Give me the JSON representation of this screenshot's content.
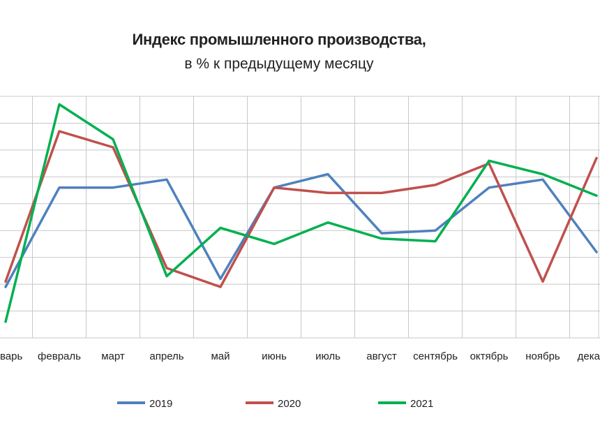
{
  "chart_data": {
    "type": "line",
    "title": "Индекс промышленного производства,",
    "subtitle": "в % к предыдущему месяцу",
    "categories": [
      "январь",
      "февраль",
      "март",
      "апрель",
      "май",
      "июнь",
      "июль",
      "август",
      "сентябрь",
      "октябрь",
      "ноябрь",
      "декабрь"
    ],
    "category_labels_visible": [
      "варь",
      "февраль",
      "март",
      "апрель",
      "май",
      "июнь",
      "июль",
      "август",
      "сентябрь",
      "октябрь",
      "ноябрь",
      "дека"
    ],
    "series": [
      {
        "name": "2019",
        "color": "#4f81bd",
        "values": [
          1.9,
          5.6,
          5.6,
          5.9,
          2.2,
          5.6,
          6.1,
          3.9,
          4.0,
          5.6,
          5.9,
          3.2
        ]
      },
      {
        "name": "2020",
        "color": "#c0504d",
        "values": [
          2.1,
          7.7,
          7.1,
          2.6,
          1.9,
          5.6,
          5.4,
          5.4,
          5.7,
          6.5,
          2.1,
          6.7
        ]
      },
      {
        "name": "2021",
        "color": "#00b050",
        "values": [
          0.6,
          8.7,
          7.4,
          2.3,
          4.1,
          3.5,
          4.3,
          3.7,
          3.6,
          6.6,
          6.1,
          5.3
        ]
      }
    ],
    "ylim": [
      0,
      9
    ],
    "grid": true,
    "legend_position": "bottom"
  }
}
